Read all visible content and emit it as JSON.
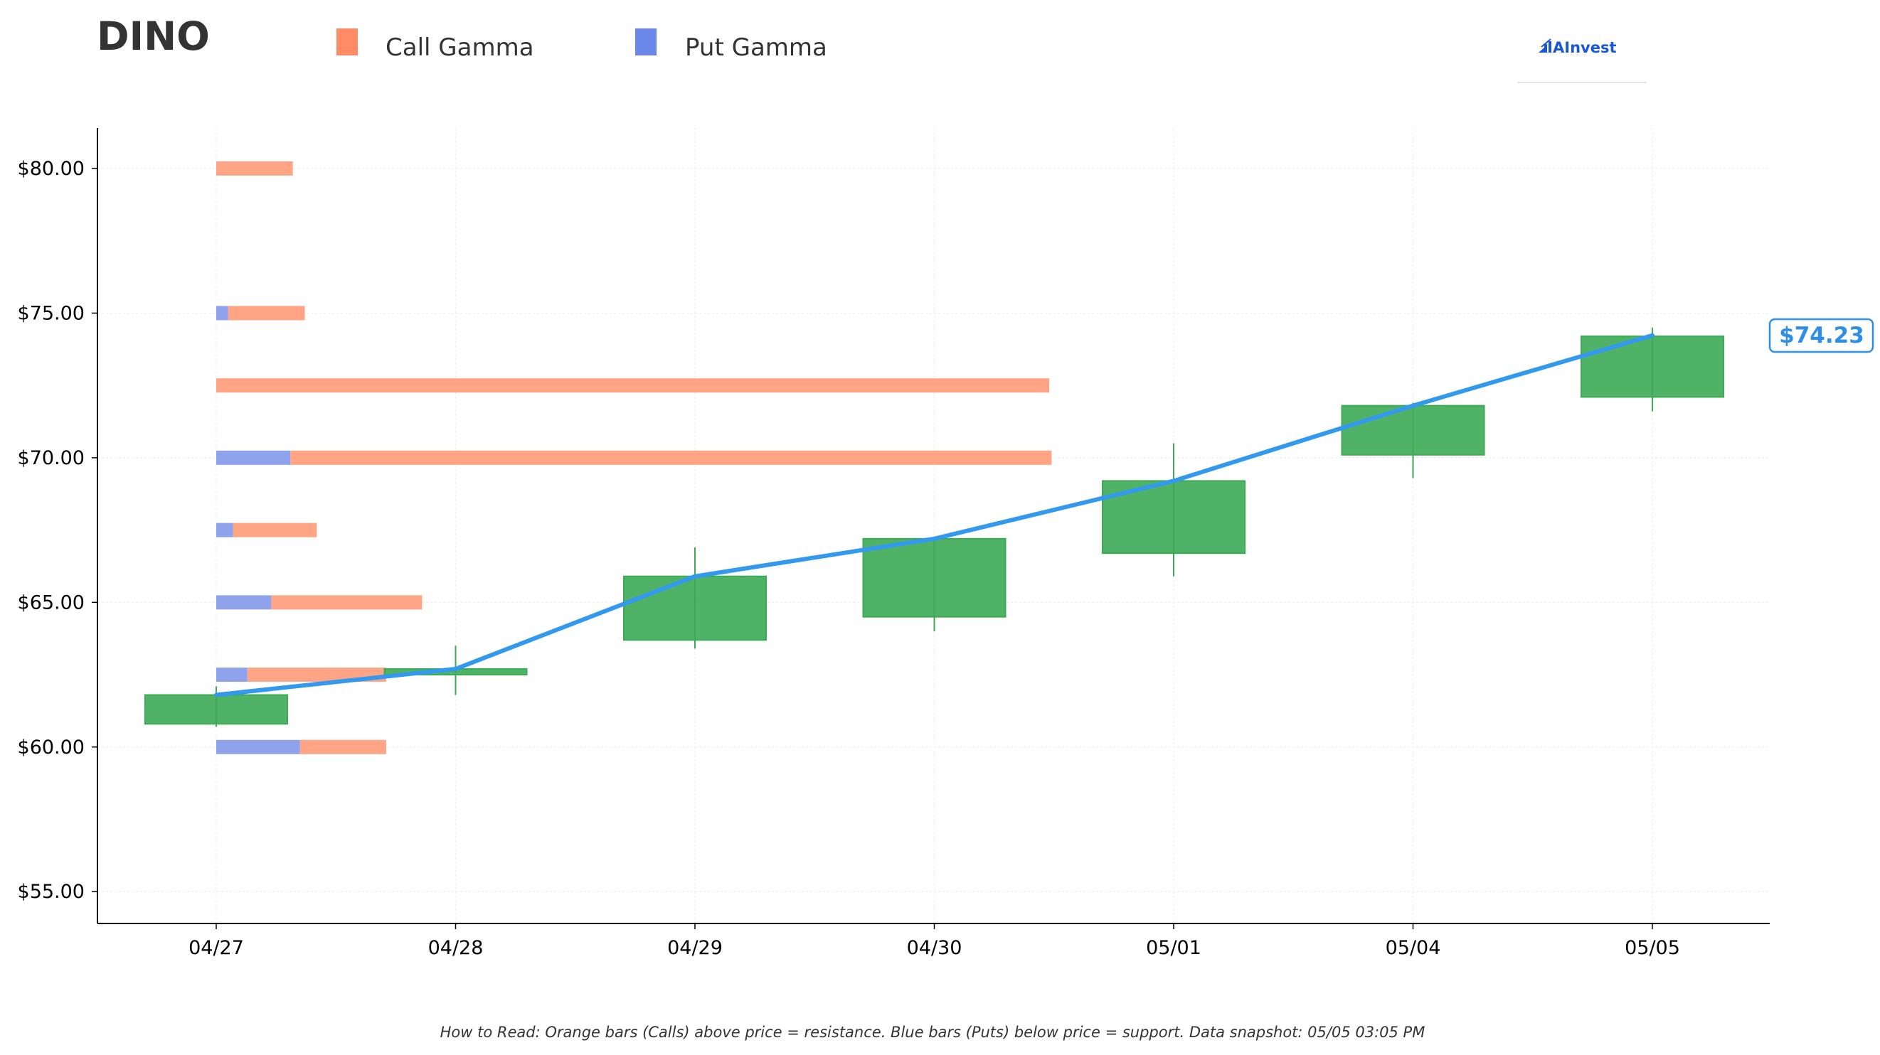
{
  "title": "DINO",
  "legend": [
    {
      "label": "Call Gamma",
      "color": "#ff8c66"
    },
    {
      "label": "Put Gamma",
      "color": "#6a86e8"
    }
  ],
  "brand": {
    "name": "AInvest",
    "color": "#1a56db"
  },
  "footnote": "How to Read: Orange bars (Calls) above price = resistance. Blue bars (Puts) below price = support. Data snapshot: 05/05 03:05 PM",
  "current_price": {
    "label": "$74.23",
    "value": 74.23,
    "color": "#2f8fe6"
  },
  "colors": {
    "candle": "#3daa55",
    "price_line": "#3399ee",
    "call_bar": "#ffa585",
    "put_bar": "#8fa2ec"
  },
  "chart_data": {
    "type": "candlestick",
    "title": "DINO",
    "xlabel": "",
    "ylabel": "",
    "ylim": [
      53.9,
      81.4
    ],
    "yticks": [
      55,
      60,
      65,
      70,
      75,
      80
    ],
    "ytick_labels": [
      "$55.00",
      "$60.00",
      "$65.00",
      "$70.00",
      "$75.00",
      "$80.00"
    ],
    "categories": [
      "04/27",
      "04/28",
      "04/29",
      "04/30",
      "05/01",
      "05/04",
      "05/05"
    ],
    "grid": true,
    "legend_position": "top",
    "candles": [
      {
        "date": "04/27",
        "open": 60.8,
        "high": 62.1,
        "low": 60.7,
        "close": 61.8
      },
      {
        "date": "04/28",
        "open": 62.5,
        "high": 63.5,
        "low": 61.8,
        "close": 62.7
      },
      {
        "date": "04/29",
        "open": 63.7,
        "high": 66.9,
        "low": 63.4,
        "close": 65.9
      },
      {
        "date": "04/30",
        "open": 64.5,
        "high": 67.2,
        "low": 64.0,
        "close": 67.2
      },
      {
        "date": "05/01",
        "open": 66.7,
        "high": 70.5,
        "low": 65.9,
        "close": 69.2
      },
      {
        "date": "05/04",
        "open": 70.1,
        "high": 71.9,
        "low": 69.3,
        "close": 71.8
      },
      {
        "date": "05/05",
        "open": 72.1,
        "high": 74.5,
        "low": 71.6,
        "close": 74.2
      }
    ],
    "price_line": [
      {
        "date": "04/27",
        "value": 61.8
      },
      {
        "date": "04/28",
        "value": 62.7
      },
      {
        "date": "04/29",
        "value": 65.9
      },
      {
        "date": "04/30",
        "value": 67.2
      },
      {
        "date": "05/01",
        "value": 69.2
      },
      {
        "date": "05/04",
        "value": 71.8
      },
      {
        "date": "05/05",
        "value": 74.23
      }
    ],
    "gamma_levels": [
      {
        "strike": 80.0,
        "put": 0.0,
        "call": 0.32
      },
      {
        "strike": 75.0,
        "put": 0.05,
        "call": 0.32
      },
      {
        "strike": 72.5,
        "put": 0.0,
        "call": 3.48
      },
      {
        "strike": 70.0,
        "put": 0.31,
        "call": 3.18
      },
      {
        "strike": 67.5,
        "put": 0.07,
        "call": 0.35
      },
      {
        "strike": 65.0,
        "put": 0.23,
        "call": 0.63
      },
      {
        "strike": 62.5,
        "put": 0.13,
        "call": 0.58
      },
      {
        "strike": 60.0,
        "put": 0.35,
        "call": 0.36
      }
    ],
    "gamma_units_note": "bar lengths expressed in x-axis day units starting at 04/27"
  }
}
